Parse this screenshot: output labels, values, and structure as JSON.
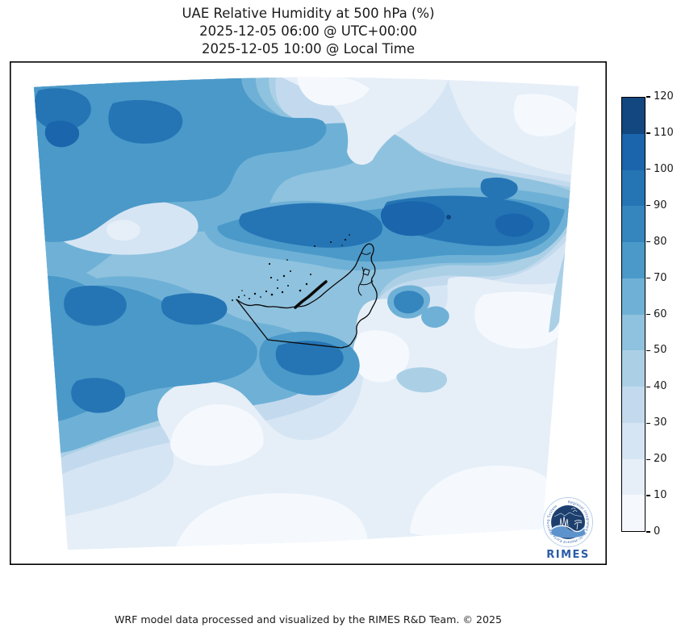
{
  "title": {
    "line1": "UAE Relative Humidity at 500 hPa (%)",
    "line2": "2025-12-05 06:00 @ UTC+00:00",
    "line3": "2025-12-05 10:00 @ Local Time"
  },
  "footer": {
    "credit": "WRF model data processed and visualized by the RIMES R&D Team. © 2025"
  },
  "colorbar": {
    "min": 0,
    "max": 120,
    "step": 10,
    "tick_labels": [
      "0",
      "10",
      "20",
      "30",
      "40",
      "50",
      "60",
      "70",
      "80",
      "90",
      "100",
      "110",
      "120"
    ],
    "colors": [
      "#f5f9fe",
      "#e6eff8",
      "#d6e5f4",
      "#c3daee",
      "#abd0e6",
      "#8fc2de",
      "#6fb1d6",
      "#4a99c9",
      "#3585bf",
      "#2575b5",
      "#1a65ab",
      "#12477f"
    ],
    "outline_color": "#000000"
  },
  "logo": {
    "org": "RIMES",
    "ring_text": "Regional Integrated Multi-Hazard Early Warning System",
    "badge_color": "#1d3f6e",
    "text_color": "#2a5ca8",
    "wave_color": "#5d93cc"
  },
  "map": {
    "boundary_overlay": "United Arab Emirates national boundary with coastal islands",
    "boundary_color": "#0a0a0a"
  },
  "chart_data": {
    "type": "filled-contour-map",
    "variable": "Relative Humidity",
    "pressure_level": "500 hPa",
    "unit": "%",
    "region": "UAE (WRF model domain)",
    "valid_time_utc": "2025-12-05 06:00 @ UTC+00:00",
    "valid_time_local": "2025-12-05 10:00 @ Local Time",
    "colormap": "Blues",
    "contour_interval": 10,
    "colorbar_range": [
      0,
      120
    ],
    "colorbar_ticks": [
      0,
      10,
      20,
      30,
      40,
      50,
      60,
      70,
      80,
      90,
      100,
      110,
      120
    ],
    "legend_position": "right",
    "notable_pattern": "High humidity (80-100%) band across the north/中 of domain and upper-left; low humidity (0-30%) in top-right corner, east of UAE and across the southern/bottom-right portion of the domain"
  }
}
